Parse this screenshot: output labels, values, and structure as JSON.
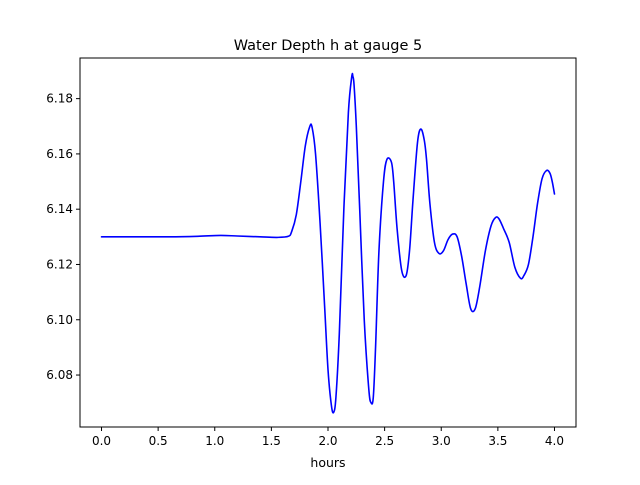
{
  "chart_data": {
    "type": "line",
    "title": "Water Depth h at gauge 5",
    "xlabel": "hours",
    "ylabel": "",
    "xlim": [
      -0.19,
      4.19
    ],
    "ylim": [
      6.0612,
      6.1947
    ],
    "x_ticks": [
      0.0,
      0.5,
      1.0,
      1.5,
      2.0,
      2.5,
      3.0,
      3.5,
      4.0
    ],
    "x_tick_labels": [
      "0.0",
      "0.5",
      "1.0",
      "1.5",
      "2.0",
      "2.5",
      "3.0",
      "3.5",
      "4.0"
    ],
    "y_ticks": [
      6.08,
      6.1,
      6.12,
      6.14,
      6.16,
      6.18
    ],
    "y_tick_labels": [
      "6.08",
      "6.10",
      "6.12",
      "6.14",
      "6.16",
      "6.18"
    ],
    "grid": false,
    "legend": false,
    "series": [
      {
        "color": "#0000ff",
        "x": [
          0.0,
          0.3,
          0.6,
          0.85,
          1.05,
          1.2,
          1.4,
          1.55,
          1.65,
          1.68,
          1.72,
          1.76,
          1.8,
          1.84,
          1.86,
          1.89,
          1.93,
          1.97,
          2.0,
          2.03,
          2.05,
          2.07,
          2.1,
          2.14,
          2.18,
          2.21,
          2.22,
          2.23,
          2.25,
          2.28,
          2.32,
          2.36,
          2.38,
          2.4,
          2.42,
          2.45,
          2.49,
          2.52,
          2.56,
          2.58,
          2.61,
          2.65,
          2.69,
          2.72,
          2.75,
          2.79,
          2.82,
          2.85,
          2.87,
          2.9,
          2.94,
          2.98,
          3.02,
          3.06,
          3.1,
          3.14,
          3.18,
          3.22,
          3.26,
          3.3,
          3.34,
          3.39,
          3.44,
          3.48,
          3.51,
          3.55,
          3.6,
          3.65,
          3.7,
          3.73,
          3.77,
          3.81,
          3.85,
          3.89,
          3.93,
          3.96,
          3.98,
          4.0
        ],
        "y": [
          6.13,
          6.13,
          6.13,
          6.1302,
          6.1305,
          6.1303,
          6.13,
          6.1298,
          6.1302,
          6.132,
          6.138,
          6.15,
          6.163,
          6.17,
          6.1695,
          6.16,
          6.135,
          6.105,
          6.082,
          6.069,
          6.0665,
          6.072,
          6.095,
          6.14,
          6.175,
          6.188,
          6.188,
          6.185,
          6.17,
          6.14,
          6.1,
          6.075,
          6.07,
          6.072,
          6.09,
          6.125,
          6.15,
          6.158,
          6.157,
          6.15,
          6.133,
          6.118,
          6.116,
          6.125,
          6.143,
          6.164,
          6.169,
          6.165,
          6.158,
          6.142,
          6.128,
          6.124,
          6.125,
          6.129,
          6.131,
          6.13,
          6.123,
          6.113,
          6.104,
          6.104,
          6.112,
          6.125,
          6.134,
          6.137,
          6.1365,
          6.133,
          6.128,
          6.119,
          6.115,
          6.116,
          6.12,
          6.13,
          6.142,
          6.151,
          6.154,
          6.153,
          6.15,
          6.1455
        ]
      }
    ]
  }
}
